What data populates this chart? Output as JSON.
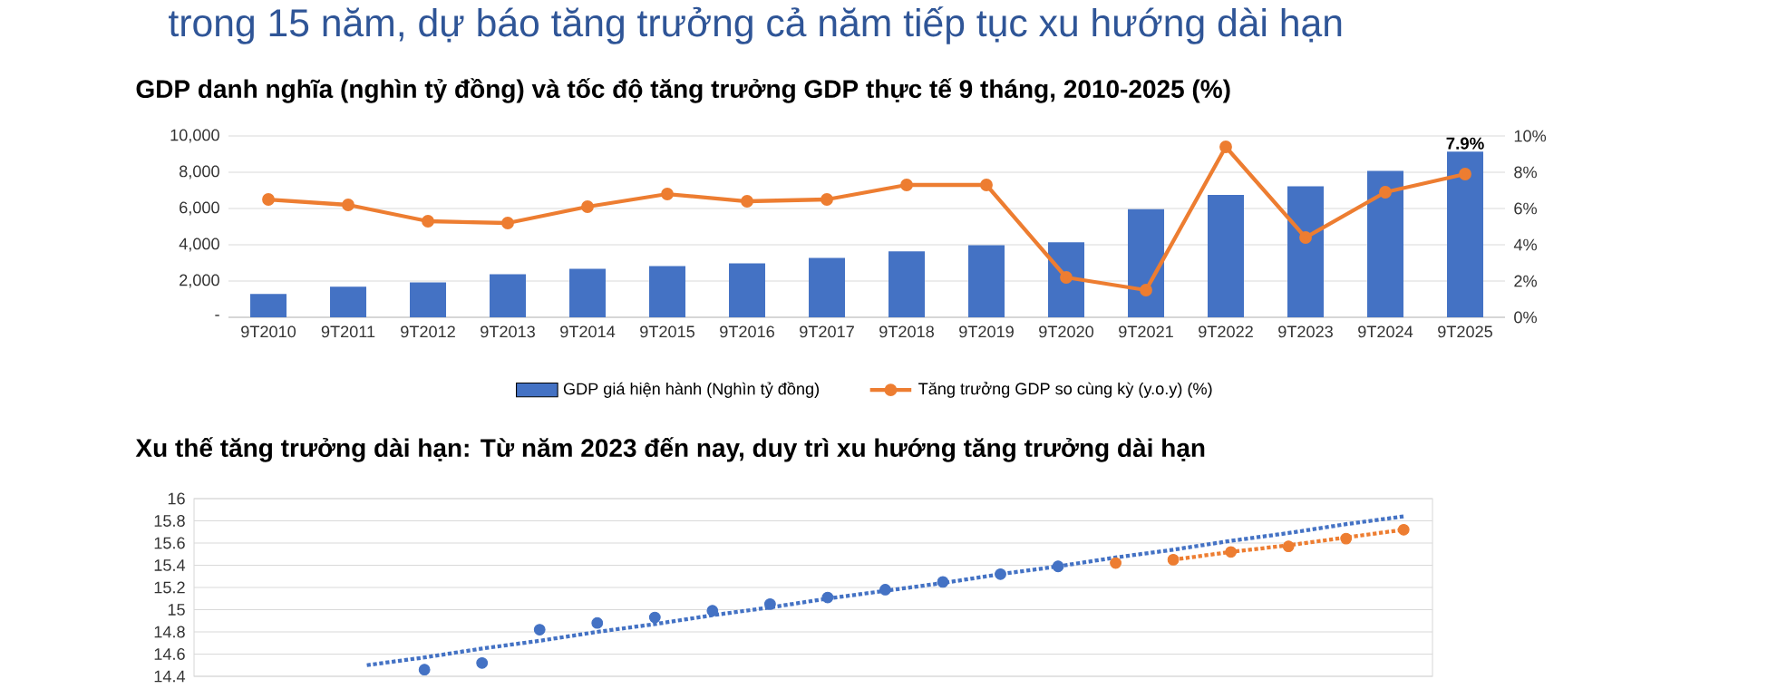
{
  "chart_data": [
    {
      "type": "bar",
      "title": "GDP danh nghĩa (nghìn tỷ đồng) và tốc độ tăng trưởng GDP thực tế 9 tháng, 2010-2025 (%)",
      "annotations": [
        "trong 15 năm, dự báo tăng trưởng cả năm tiếp tục xu hướng dài hạn"
      ],
      "categories": [
        "9T2010",
        "9T2011",
        "9T2012",
        "9T2013",
        "9T2014",
        "9T2015",
        "9T2016",
        "9T2017",
        "9T2018",
        "9T2019",
        "9T2020",
        "9T2021",
        "9T2022",
        "9T2023",
        "9T2024",
        "9T2025"
      ],
      "series": [
        {
          "name": "GDP giá hiện hành (Nghìn tỷ đồng)",
          "type": "bar",
          "color": "#4472c4",
          "values": [
            1290,
            1690,
            1920,
            2380,
            2680,
            2820,
            2980,
            3280,
            3640,
            3970,
            4140,
            5960,
            6750,
            7220,
            8080,
            9140
          ]
        },
        {
          "name": "Tăng trưởng GDP so cùng kỳ (y.o.y) (%)",
          "type": "line",
          "axis": "y2",
          "marker": "circle",
          "color": "#ed7d31",
          "values": [
            6.5,
            6.2,
            5.3,
            5.2,
            6.1,
            6.8,
            6.4,
            6.5,
            7.3,
            7.3,
            2.2,
            1.5,
            9.4,
            4.4,
            6.9,
            7.9
          ],
          "value_labels": [
            null,
            null,
            null,
            null,
            null,
            null,
            null,
            null,
            null,
            null,
            null,
            null,
            null,
            null,
            null,
            "7.9%"
          ]
        }
      ],
      "ylim": [
        0,
        10000
      ],
      "yticks": [
        {
          "value": 0,
          "label": "-"
        },
        {
          "value": 2000,
          "label": "2,000"
        },
        {
          "value": 4000,
          "label": "4,000"
        },
        {
          "value": 6000,
          "label": "6,000"
        },
        {
          "value": 8000,
          "label": "8,000"
        },
        {
          "value": 10000,
          "label": "10,000"
        }
      ],
      "y2lim": [
        0,
        10
      ],
      "y2ticks": [
        {
          "value": 0,
          "label": "0%"
        },
        {
          "value": 2,
          "label": "2%"
        },
        {
          "value": 4,
          "label": "4%"
        },
        {
          "value": 6,
          "label": "6%"
        },
        {
          "value": 8,
          "label": "8%"
        },
        {
          "value": 10,
          "label": "10%"
        }
      ],
      "grid": "y",
      "legend": "bottom"
    },
    {
      "type": "scatter",
      "title": "Xu thế tăng trưởng dài hạn: Từ năm 2023 đến nay, duy trì xu hướng tăng trưởng dài hạn",
      "categories": [
        null,
        null,
        null,
        null,
        null,
        null,
        null,
        null,
        null,
        null,
        null,
        null,
        null,
        null,
        null,
        null,
        null,
        null,
        null,
        null,
        null
      ],
      "series": [
        {
          "color": "#4472c4",
          "values": [
            null,
            null,
            null,
            14.46,
            14.52,
            14.82,
            14.88,
            14.93,
            14.99,
            15.05,
            15.11,
            15.18,
            15.25,
            15.32,
            15.39,
            null,
            null,
            null,
            null,
            null,
            null
          ]
        },
        {
          "color": "#ed7d31",
          "values": [
            null,
            null,
            null,
            null,
            null,
            null,
            null,
            null,
            null,
            null,
            null,
            null,
            null,
            null,
            null,
            15.42,
            15.45,
            15.52,
            15.57,
            15.64,
            15.72
          ]
        },
        {
          "type": "line",
          "line_style": "dotted",
          "marker": "none",
          "color": "#4472c4",
          "values": [
            null,
            null,
            14.5,
            14.57,
            14.65,
            14.72,
            14.8,
            14.87,
            14.95,
            15.02,
            15.1,
            15.17,
            15.24,
            15.32,
            15.39,
            15.47,
            15.54,
            15.62,
            15.69,
            15.77,
            15.84
          ]
        },
        {
          "type": "line",
          "line_style": "dotted",
          "marker": "none",
          "color": "#ed7d31",
          "values": [
            null,
            null,
            null,
            null,
            null,
            null,
            null,
            null,
            null,
            null,
            null,
            null,
            null,
            null,
            null,
            null,
            15.45,
            15.52,
            15.58,
            15.65,
            15.72
          ]
        }
      ],
      "marker": "circle",
      "ylim": [
        14.4,
        16
      ],
      "yticks": [
        14.4,
        14.6,
        14.8,
        15,
        15.2,
        15.4,
        15.6,
        15.8,
        16
      ],
      "tick_labels": "y",
      "grid": "y"
    }
  ]
}
